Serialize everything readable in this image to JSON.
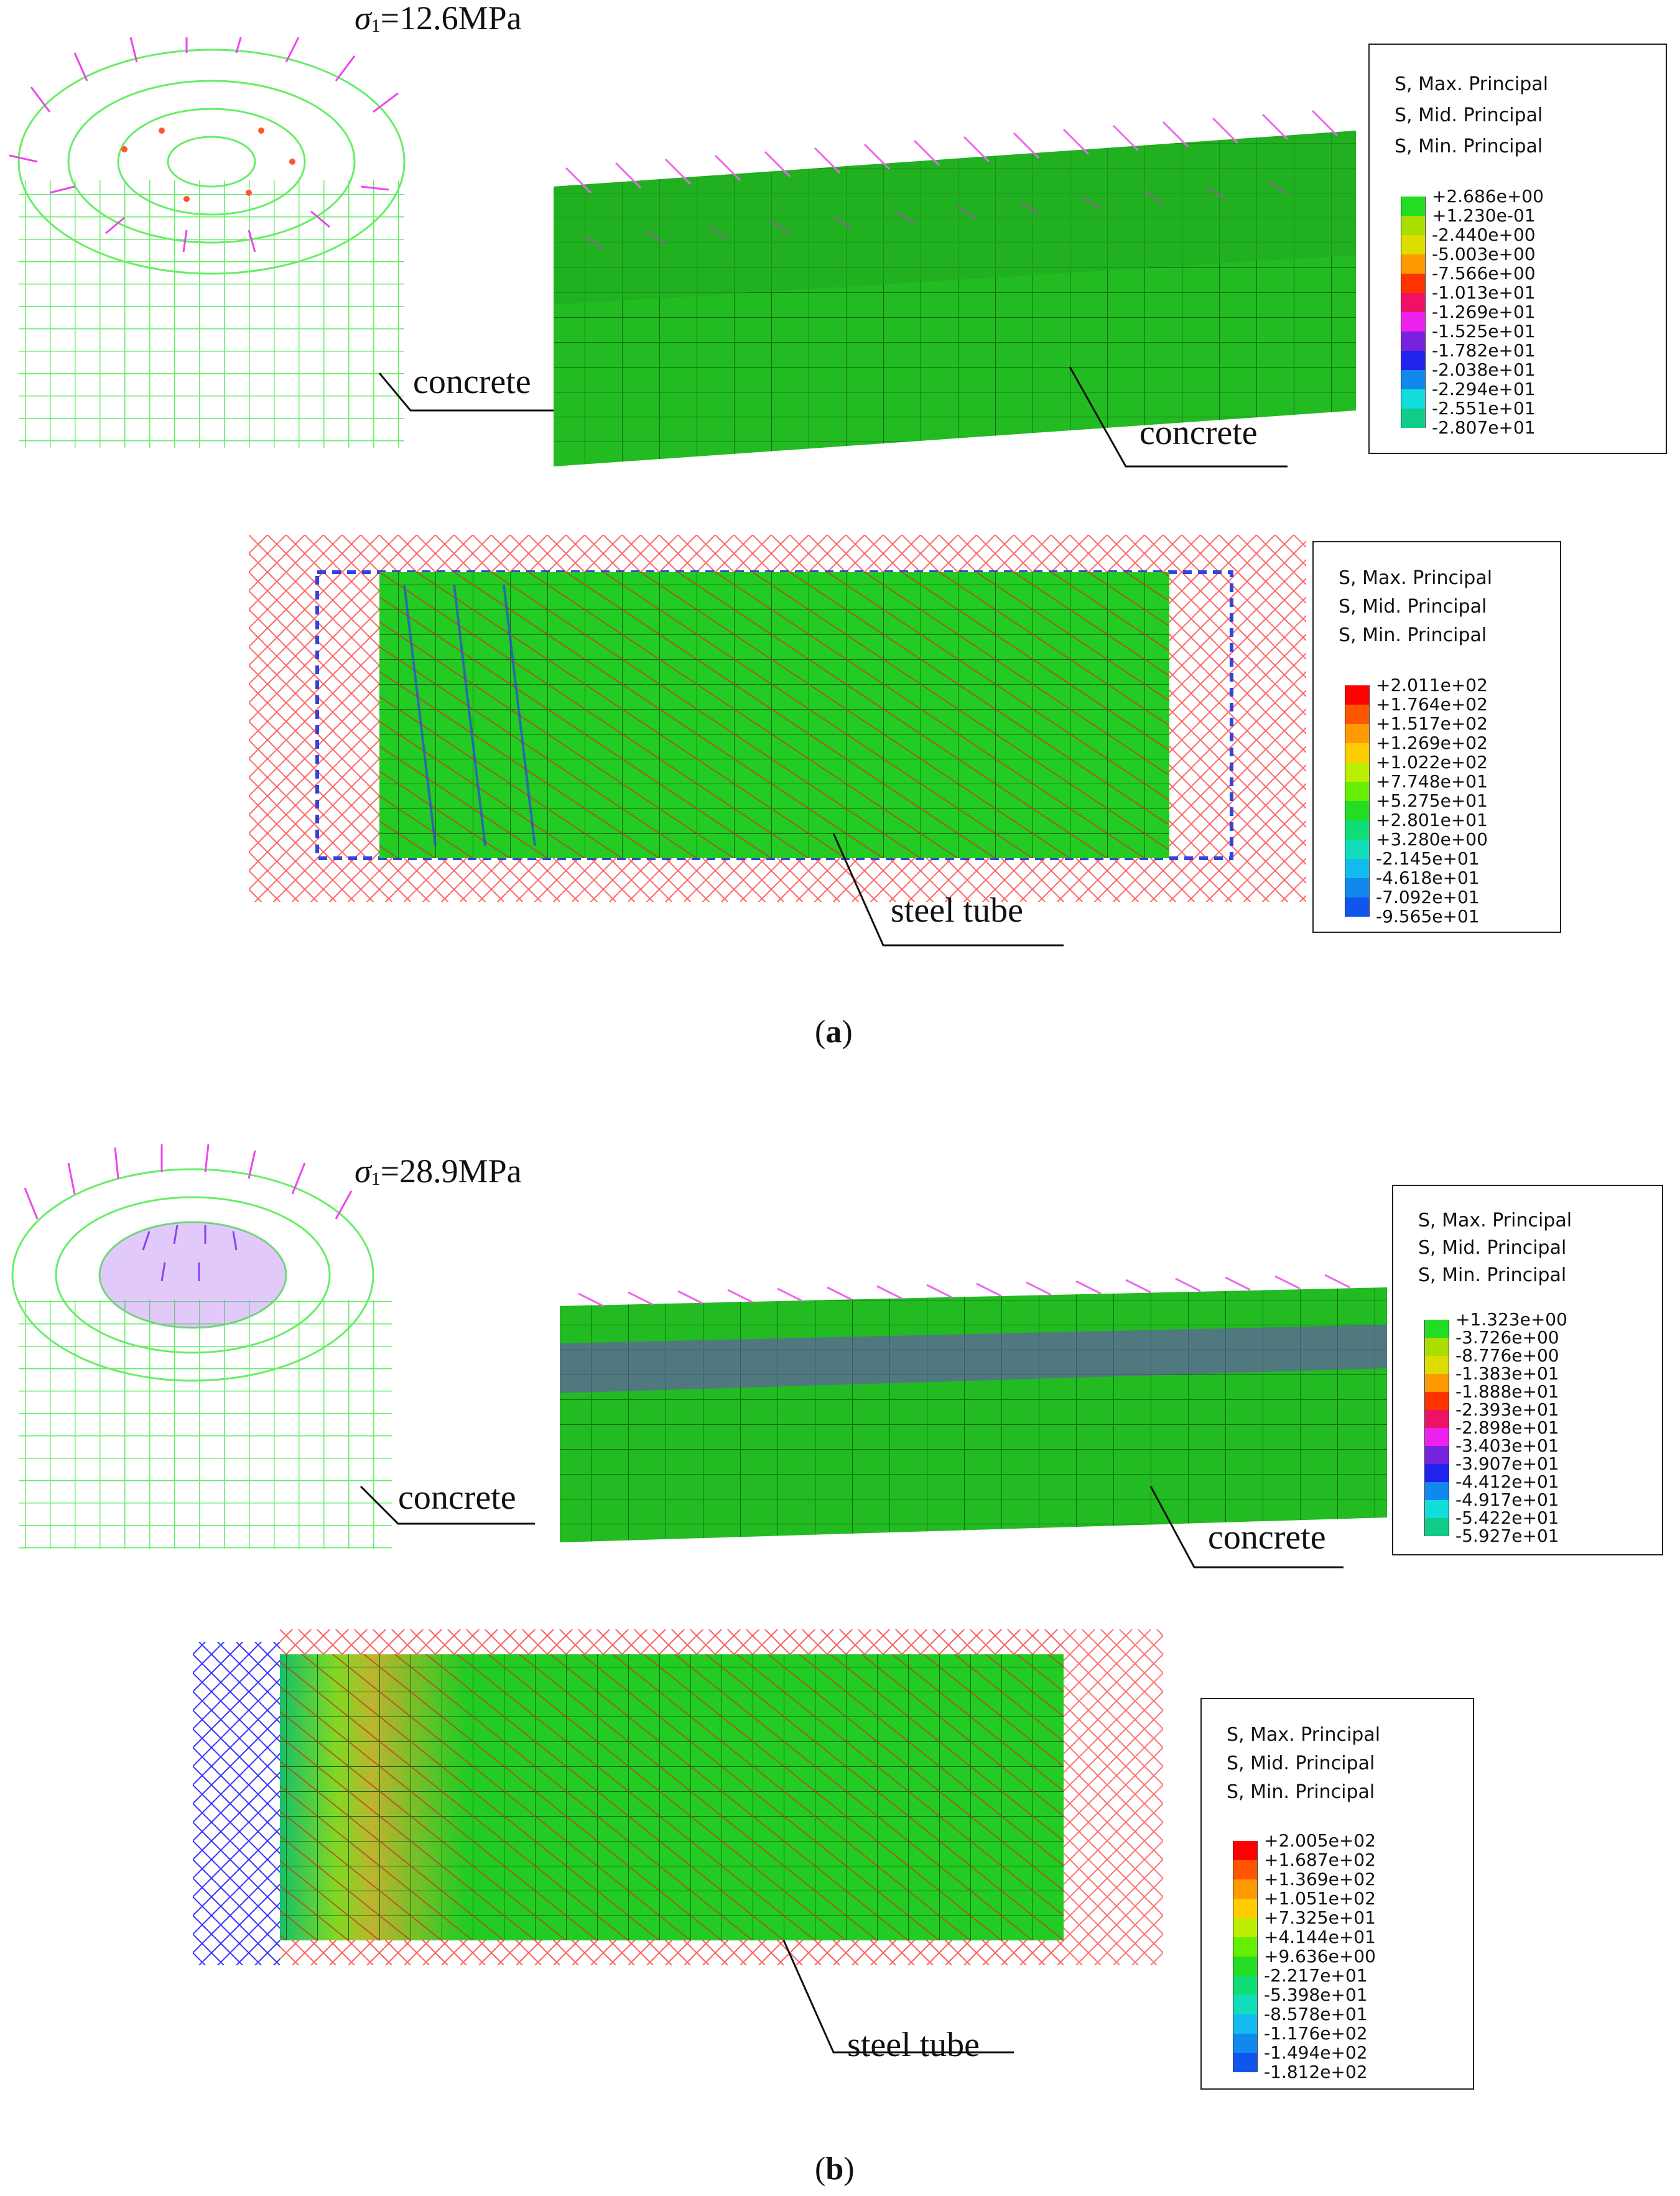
{
  "panel_a": {
    "sigma_symbol": "σ",
    "sigma_sub": "1",
    "sigma_value": "=12.6MPa",
    "labels": {
      "concrete_left": "concrete",
      "concrete_right": "concrete",
      "steel_tube": "steel tube"
    },
    "legend_concrete": {
      "title_lines": [
        "S, Max. Principal",
        "S, Mid. Principal",
        "S, Min. Principal"
      ],
      "values": [
        "+2.686e+00",
        "+1.230e-01",
        "-2.440e+00",
        "-5.003e+00",
        "-7.566e+00",
        "-1.013e+01",
        "-1.269e+01",
        "-1.525e+01",
        "-1.782e+01",
        "-2.038e+01",
        "-2.294e+01",
        "-2.551e+01",
        "-2.807e+01"
      ],
      "colors": [
        "#22dd22",
        "#aadd00",
        "#dddd00",
        "#ff9900",
        "#ff3300",
        "#ee1166",
        "#ee22ee",
        "#7722dd",
        "#2222ee",
        "#1188ee",
        "#11dddd",
        "#11cc88",
        "#22dd22"
      ]
    },
    "legend_steel": {
      "title_lines": [
        "S, Max. Principal",
        "S, Mid. Principal",
        "S, Min. Principal"
      ],
      "values": [
        "+2.011e+02",
        "+1.764e+02",
        "+1.517e+02",
        "+1.269e+02",
        "+1.022e+02",
        "+7.748e+01",
        "+5.275e+01",
        "+2.801e+01",
        "+3.280e+00",
        "-2.145e+01",
        "-4.618e+01",
        "-7.092e+01",
        "-9.565e+01"
      ],
      "colors": [
        "#ff0000",
        "#ff5500",
        "#ff9900",
        "#ffcc00",
        "#bbee00",
        "#66ee00",
        "#22dd22",
        "#11dd77",
        "#11ddbb",
        "#11bbee",
        "#1188ee",
        "#1155ee",
        "#0000ff"
      ]
    },
    "caption": "a"
  },
  "panel_b": {
    "sigma_symbol": "σ",
    "sigma_sub": "1",
    "sigma_value": "=28.9MPa",
    "labels": {
      "concrete_left": "concrete",
      "concrete_right": "concrete",
      "steel_tube": "steel tube"
    },
    "legend_concrete": {
      "title_lines": [
        "S, Max. Principal",
        "S, Mid. Principal",
        "S, Min. Principal"
      ],
      "values": [
        "+1.323e+00",
        "-3.726e+00",
        "-8.776e+00",
        "-1.383e+01",
        "-1.888e+01",
        "-2.393e+01",
        "-2.898e+01",
        "-3.403e+01",
        "-3.907e+01",
        "-4.412e+01",
        "-4.917e+01",
        "-5.422e+01",
        "-5.927e+01"
      ],
      "colors": [
        "#22dd22",
        "#aadd00",
        "#dddd00",
        "#ff9900",
        "#ff3300",
        "#ee1166",
        "#ee22ee",
        "#7722dd",
        "#2222ee",
        "#1188ee",
        "#11dddd",
        "#11cc88",
        "#22dd22"
      ]
    },
    "legend_steel": {
      "title_lines": [
        "S, Max. Principal",
        "S, Mid. Principal",
        "S, Min. Principal"
      ],
      "values": [
        "+2.005e+02",
        "+1.687e+02",
        "+1.369e+02",
        "+1.051e+02",
        "+7.325e+01",
        "+4.144e+01",
        "+9.636e+00",
        "-2.217e+01",
        "-5.398e+01",
        "-8.578e+01",
        "-1.176e+02",
        "-1.494e+02",
        "-1.812e+02"
      ],
      "colors": [
        "#ff0000",
        "#ff5500",
        "#ff9900",
        "#ffcc00",
        "#bbee00",
        "#66ee00",
        "#22dd22",
        "#11dd77",
        "#11ddbb",
        "#11bbee",
        "#1188ee",
        "#1155ee",
        "#0000ff"
      ]
    },
    "caption": "b"
  }
}
